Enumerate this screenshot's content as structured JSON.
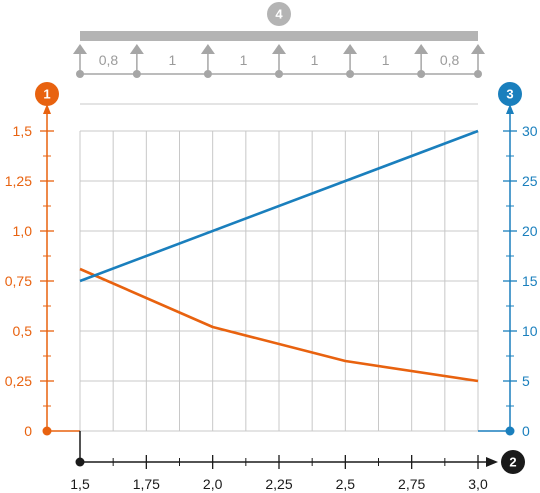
{
  "badges": {
    "left": "1",
    "bottom": "2",
    "right": "3",
    "top": "4"
  },
  "colors": {
    "left": "#e8620f",
    "right": "#1a7fbd",
    "axis": "#1a1a1a",
    "grid": "#c8c8c8",
    "support": "#a6a6a6",
    "beam": "#b4b4b4"
  },
  "beam": {
    "span_labels": [
      "0,8",
      "1",
      "1",
      "1",
      "1",
      "0,8"
    ]
  },
  "chart_data": {
    "type": "line",
    "x": [
      1.5,
      1.75,
      2.0,
      2.25,
      2.5,
      2.75,
      3.0
    ],
    "x_tick_labels": [
      "1,5",
      "1,75",
      "2,0",
      "2,25",
      "2,5",
      "2,75",
      "3,0"
    ],
    "xlim": [
      1.5,
      3.0
    ],
    "y_left": {
      "ylim": [
        0,
        1.5
      ],
      "ticks": [
        0,
        0.25,
        0.5,
        0.75,
        1.0,
        1.25,
        1.5
      ],
      "tick_labels": [
        "0",
        "0,25",
        "0,5",
        "0,75",
        "1,0",
        "1,25",
        "1,5"
      ]
    },
    "y_right": {
      "ylim": [
        0,
        30
      ],
      "ticks": [
        0,
        5,
        10,
        15,
        20,
        25,
        30
      ],
      "tick_labels": [
        "0",
        "5",
        "10",
        "15",
        "20",
        "25",
        "30"
      ]
    },
    "series": [
      {
        "axis": "left",
        "color": "#e8620f",
        "x": [
          1.5,
          2.0,
          2.5,
          3.0
        ],
        "values": [
          0.81,
          0.52,
          0.35,
          0.25
        ]
      },
      {
        "axis": "right",
        "color": "#1a7fbd",
        "x": [
          1.5,
          3.0
        ],
        "values": [
          15,
          30
        ]
      }
    ],
    "grid": true
  }
}
